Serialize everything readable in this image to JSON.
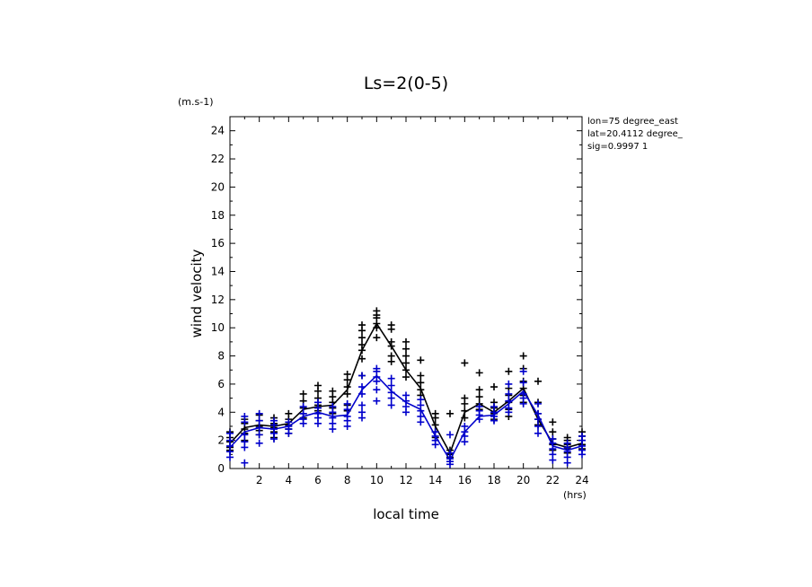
{
  "chart_data": {
    "type": "line",
    "title": "Ls=2(0-5)",
    "ylabel": "wind velocity",
    "xlabel": "local time",
    "y_unit": "(m.s-1)",
    "x_unit": "(hrs)",
    "info": [
      "lon=75 degree_east",
      "lat=20.4112 degree_",
      "sig=0.9997 1"
    ],
    "xlim": [
      0,
      24
    ],
    "ylim": [
      0,
      25
    ],
    "xticks": [
      2,
      4,
      6,
      8,
      10,
      12,
      14,
      16,
      18,
      20,
      22,
      24
    ],
    "yticks": [
      0,
      2,
      4,
      6,
      8,
      10,
      12,
      14,
      16,
      18,
      20,
      22,
      24
    ],
    "colors": {
      "black_series": "#000000",
      "blue_series": "#0000cc"
    },
    "series": [
      {
        "color": "#000000",
        "x": [
          0,
          1,
          2,
          3,
          4,
          5,
          6,
          7,
          8,
          9,
          10,
          11,
          12,
          13,
          14,
          15,
          16,
          17,
          18,
          19,
          20,
          21,
          22,
          23,
          24
        ],
        "mean": [
          1.8,
          2.9,
          3.1,
          3.0,
          3.2,
          4.2,
          4.4,
          4.5,
          5.6,
          8.4,
          10.3,
          8.7,
          7.0,
          5.7,
          3.0,
          1.1,
          4.0,
          4.6,
          4.0,
          4.8,
          5.7,
          3.5,
          1.8,
          1.5,
          1.8
        ],
        "points": [
          [
            2.2,
            2.6,
            1.9,
            1.5,
            1.3
          ],
          [
            3.5,
            3.2,
            2.8,
            2.5,
            2.0
          ],
          [
            3.8,
            3.4,
            3.0,
            2.7,
            2.4
          ],
          [
            3.6,
            3.2,
            2.9,
            2.6,
            2.2
          ],
          [
            3.9,
            3.5,
            3.1,
            2.8,
            2.5
          ],
          [
            5.3,
            4.8,
            4.3,
            3.9,
            3.6
          ],
          [
            5.9,
            5.5,
            5.0,
            4.5,
            4.1
          ],
          [
            5.5,
            5.1,
            4.7,
            4.3,
            3.9
          ],
          [
            6.7,
            6.3,
            5.8,
            5.3,
            4.5,
            4.1
          ],
          [
            10.2,
            9.8,
            9.3,
            8.8,
            8.4,
            7.8,
            6.6
          ],
          [
            11.2,
            10.9,
            10.7,
            10.3,
            10.0,
            9.3
          ],
          [
            10.2,
            9.9,
            9.0,
            8.7,
            8.0,
            7.6
          ],
          [
            9.0,
            8.5,
            8.0,
            7.5,
            7.0,
            6.5
          ],
          [
            7.7,
            6.6,
            6.1,
            5.6,
            5.2
          ],
          [
            3.9,
            3.6,
            3.1,
            2.6,
            2.2
          ],
          [
            3.9,
            1.3,
            1.0,
            0.8
          ],
          [
            7.5,
            5.0,
            4.6,
            4.1,
            3.6
          ],
          [
            6.8,
            5.6,
            5.1,
            4.6,
            4.2
          ],
          [
            5.8,
            4.7,
            4.3,
            3.9,
            3.5
          ],
          [
            6.9,
            5.7,
            5.2,
            4.7,
            4.2,
            3.7
          ],
          [
            8.0,
            7.1,
            6.2,
            5.7,
            5.2,
            4.7
          ],
          [
            6.2,
            4.7,
            3.9,
            3.5,
            3.1
          ],
          [
            3.3,
            2.6,
            2.1,
            1.7,
            1.3
          ],
          [
            2.2,
            2.0,
            1.7,
            1.4,
            1.1
          ],
          [
            2.6,
            2.3,
            2.0,
            1.7,
            1.4
          ]
        ]
      },
      {
        "color": "#0000cc",
        "x": [
          0,
          1,
          2,
          3,
          4,
          5,
          6,
          7,
          8,
          9,
          10,
          11,
          12,
          13,
          14,
          15,
          16,
          17,
          18,
          19,
          20,
          21,
          22,
          23,
          24
        ],
        "mean": [
          1.5,
          2.6,
          2.9,
          2.8,
          3.0,
          3.7,
          4.0,
          3.7,
          3.8,
          5.6,
          6.6,
          5.5,
          4.7,
          4.2,
          2.3,
          0.6,
          2.6,
          3.7,
          3.8,
          4.6,
          5.5,
          3.8,
          1.6,
          1.3,
          1.6
        ],
        "points": [
          [
            2.5,
            2.0,
            1.6,
            1.2,
            0.8
          ],
          [
            3.7,
            3.3,
            2.4,
            1.9,
            1.5,
            0.4
          ],
          [
            3.9,
            3.4,
            2.9,
            2.4,
            1.8
          ],
          [
            3.4,
            3.1,
            2.8,
            2.5,
            2.1
          ],
          [
            3.3,
            3.0,
            2.8,
            2.5
          ],
          [
            4.4,
            3.9,
            3.5,
            3.2
          ],
          [
            4.7,
            4.3,
            3.9,
            3.6,
            3.2
          ],
          [
            4.4,
            4.0,
            3.6,
            3.2,
            2.8
          ],
          [
            4.6,
            4.2,
            3.7,
            3.4,
            3.0
          ],
          [
            6.6,
            5.8,
            5.3,
            4.5,
            4.0,
            3.6
          ],
          [
            7.1,
            6.9,
            6.5,
            6.2,
            5.6,
            4.8
          ],
          [
            6.4,
            5.9,
            5.4,
            5.0,
            4.5
          ],
          [
            5.2,
            4.8,
            4.4,
            4.0
          ],
          [
            4.9,
            4.5,
            4.1,
            3.7,
            3.3
          ],
          [
            2.6,
            2.3,
            2.0,
            1.7
          ],
          [
            2.4,
            1.1,
            0.7,
            0.5,
            0.3
          ],
          [
            3.0,
            2.6,
            2.3,
            1.9
          ],
          [
            4.4,
            4.1,
            3.8,
            3.5
          ],
          [
            4.4,
            4.0,
            3.7,
            3.4
          ],
          [
            6.0,
            5.3,
            4.8,
            4.3,
            4.0
          ],
          [
            6.9,
            6.1,
            5.3,
            5.0,
            4.6
          ],
          [
            4.6,
            3.9,
            3.5,
            3.0,
            2.5
          ],
          [
            2.1,
            1.8,
            1.4,
            1.0,
            0.6
          ],
          [
            1.8,
            1.5,
            1.2,
            0.8,
            0.4
          ],
          [
            2.3,
            2.0,
            1.6,
            1.3,
            1.0
          ]
        ]
      }
    ]
  }
}
